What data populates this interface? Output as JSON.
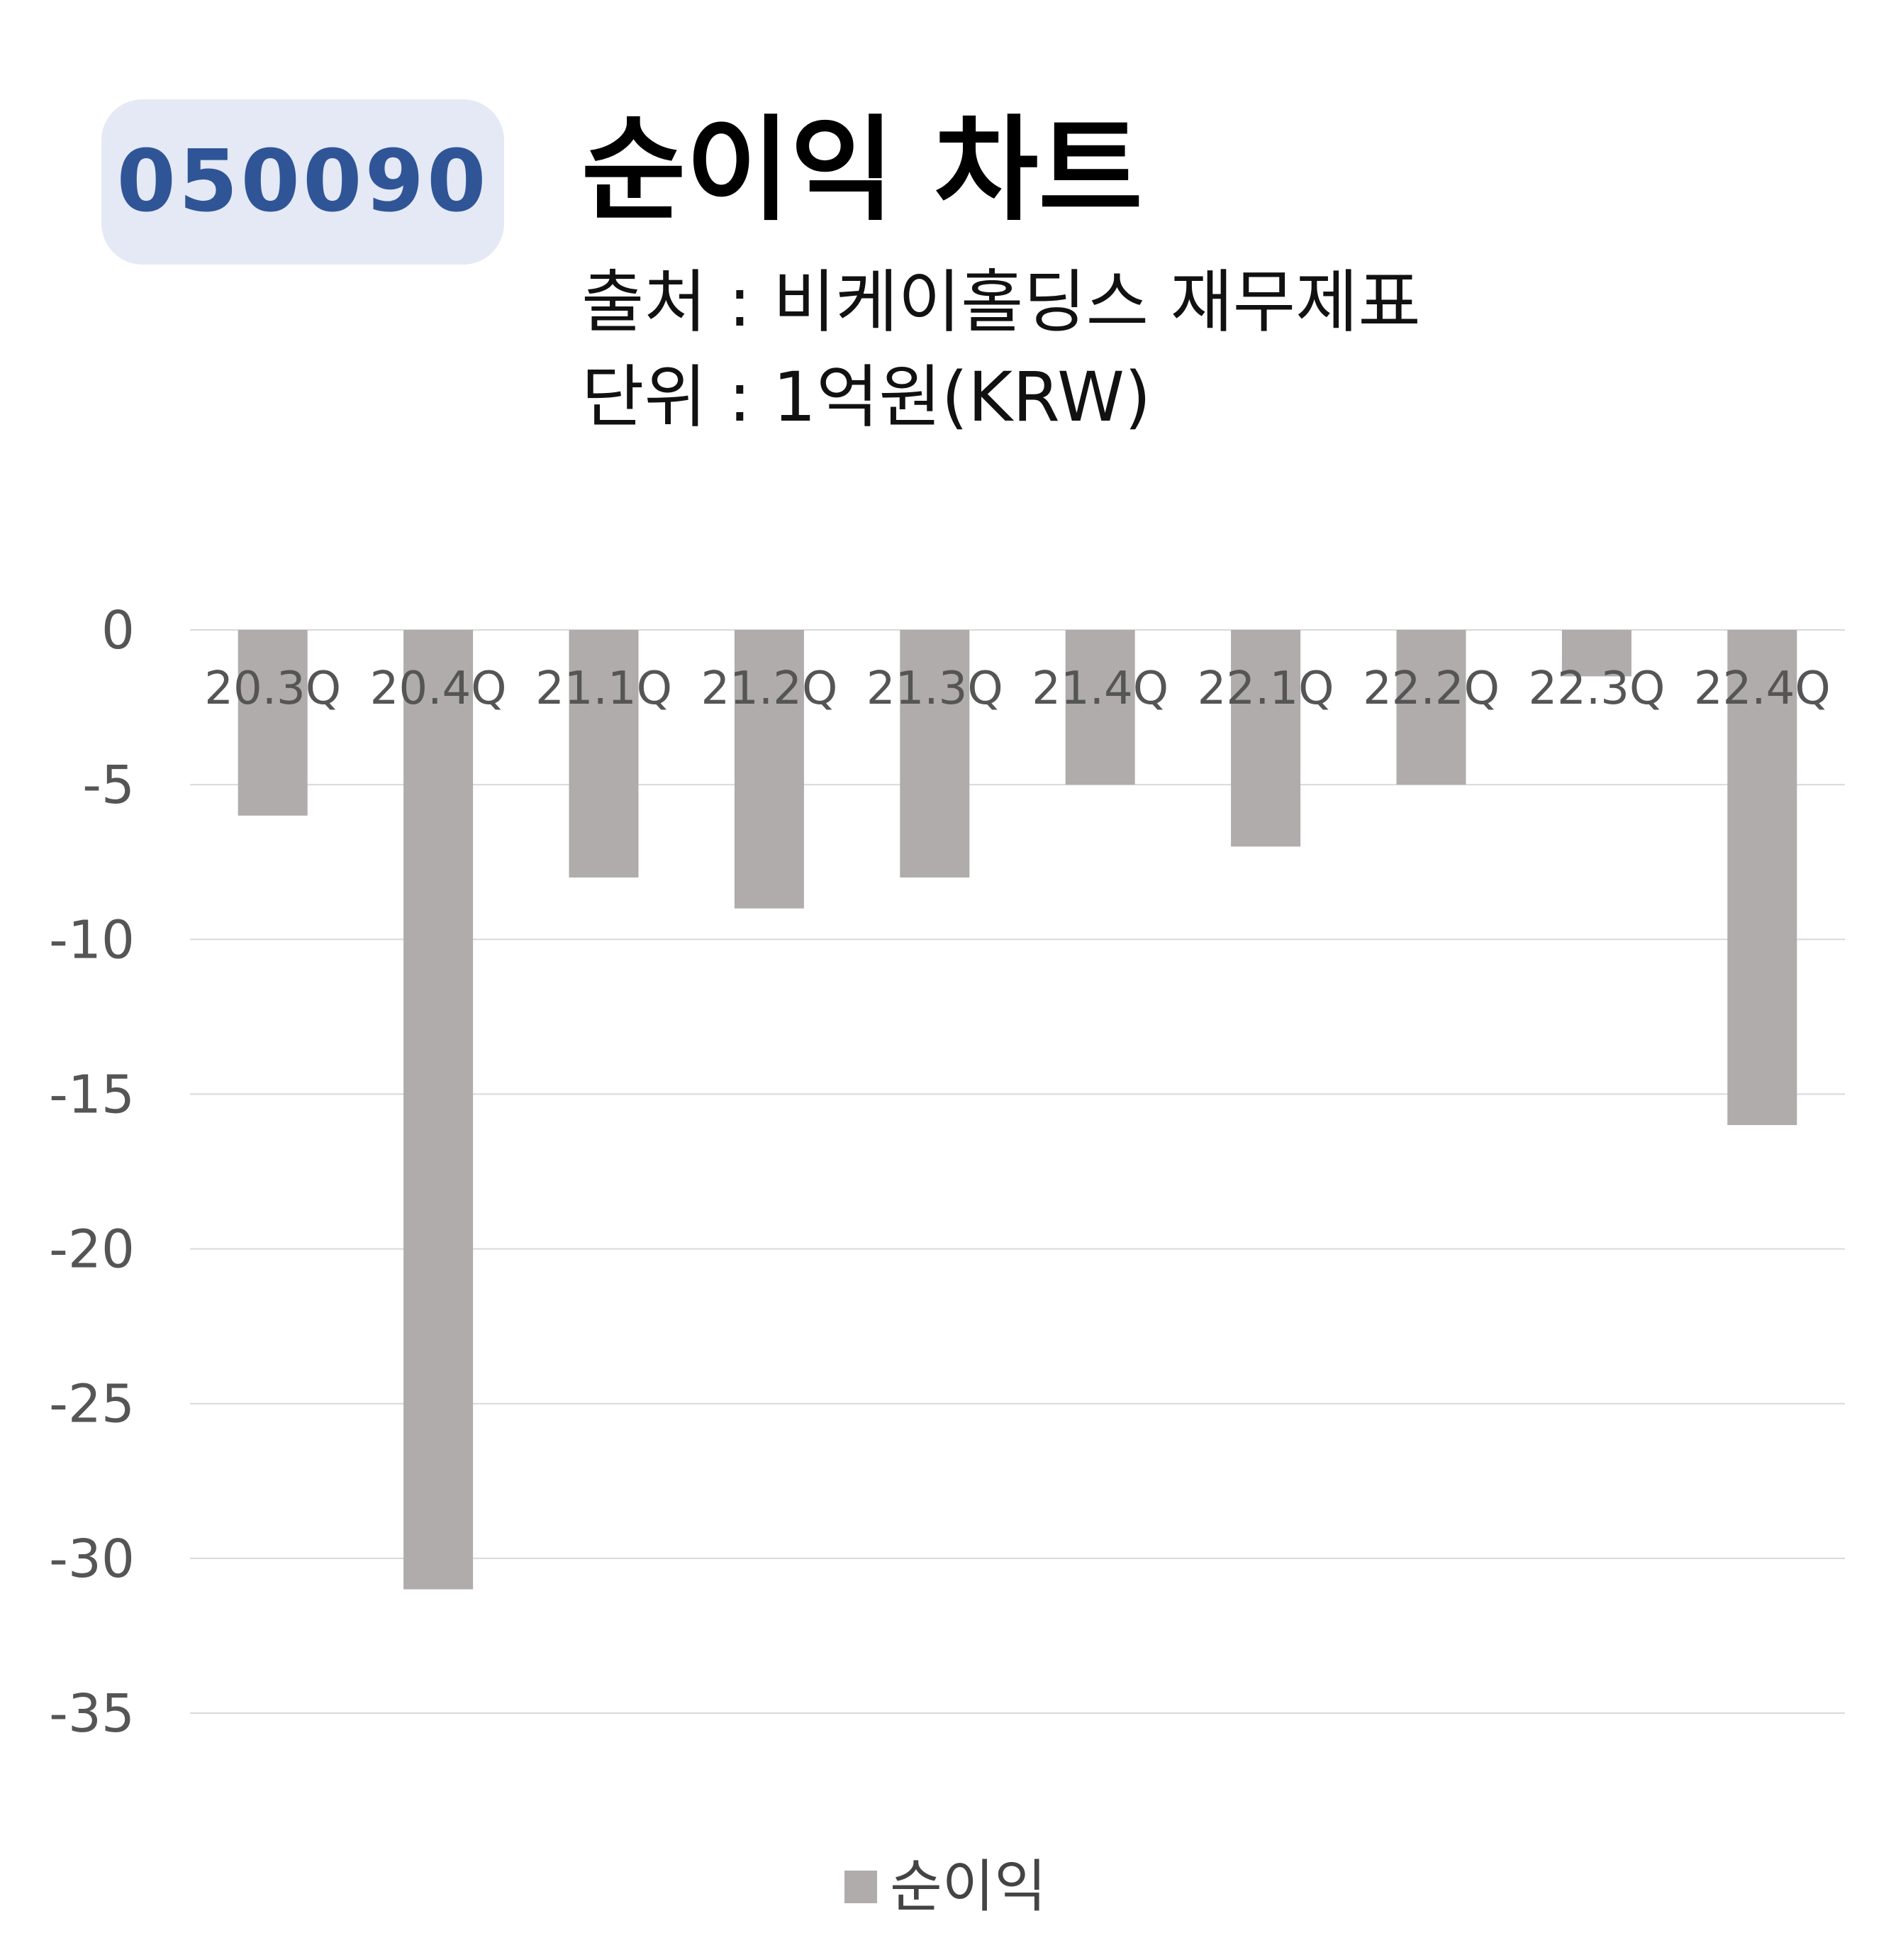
{
  "badge": {
    "code": "050090"
  },
  "header": {
    "title": "순이익 차트",
    "source": "출처 : 비케이홀딩스 재무제표",
    "unit": "단위 : 1억원(KRW)"
  },
  "colors": {
    "bar": "#afacab",
    "badge_bg": "#e4e9f5",
    "badge_text": "#2f5597",
    "grid": "#d9d9d9"
  },
  "chart_data": {
    "type": "bar",
    "categories": [
      "20.3Q",
      "20.4Q",
      "21.1Q",
      "21.2Q",
      "21.3Q",
      "21.4Q",
      "22.1Q",
      "22.2Q",
      "22.3Q",
      "22.4Q"
    ],
    "series": [
      {
        "name": "순이익",
        "values": [
          -6,
          -31,
          -8,
          -9,
          -8,
          -5,
          -7,
          -5,
          -1.5,
          -16
        ]
      }
    ],
    "ylim": [
      -35,
      0
    ],
    "yticks": [
      0,
      -5,
      -10,
      -15,
      -20,
      -25,
      -30,
      -35
    ],
    "grid": true,
    "legend": "bottom"
  }
}
